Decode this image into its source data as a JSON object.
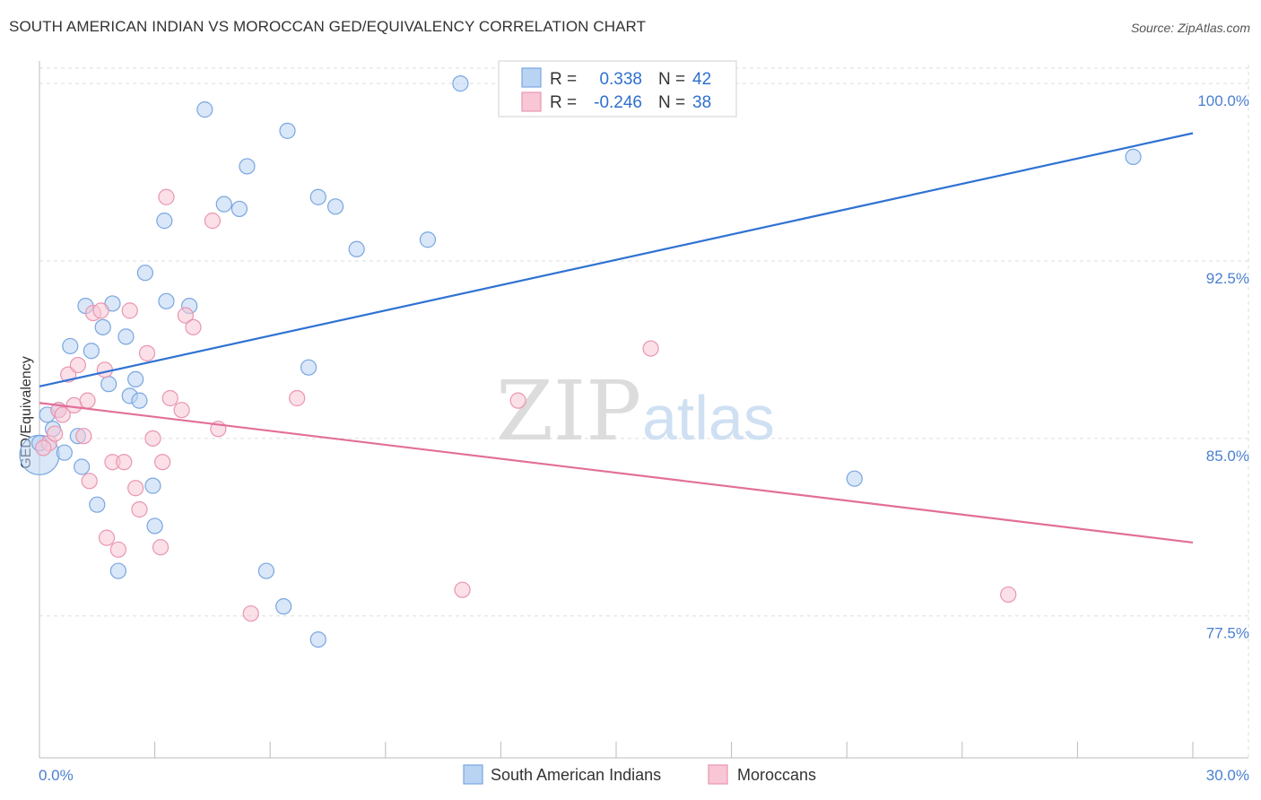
{
  "title": "SOUTH AMERICAN INDIAN VS MOROCCAN GED/EQUIVALENCY CORRELATION CHART",
  "source": "Source: ZipAtlas.com",
  "watermark": {
    "part1": "ZIP",
    "part2": "atlas"
  },
  "colors": {
    "blue_fill": "#b9d3f3",
    "blue_stroke": "#7aa6e0",
    "blue_line": "#2f72d3",
    "pink_fill": "#f8c6d5",
    "pink_stroke": "#e996b0",
    "pink_line": "#e26f98",
    "grid": "#dddddd",
    "axis_text": "#4a7fd0"
  },
  "legend": {
    "rows": [
      {
        "r_label": "R =",
        "r_value": "0.338",
        "n_label": "N =",
        "n_value": "42"
      },
      {
        "r_label": "R =",
        "r_value": "-0.246",
        "n_label": "N =",
        "n_value": "38"
      }
    ]
  },
  "chart_data": {
    "type": "scatter",
    "xlabel": "",
    "ylabel": "GED/Equivalency",
    "xlim": [
      0,
      30
    ],
    "ylim": [
      71.5,
      100.8
    ],
    "x_tick_labels": [
      {
        "value": 0,
        "label": "0.0%"
      },
      {
        "value": 30,
        "label": "30.0%"
      }
    ],
    "x_minor_ticks": [
      0,
      3,
      6,
      9,
      12,
      15,
      18,
      21,
      24,
      27,
      30
    ],
    "y_ticks": [
      {
        "value": 100.0,
        "label": "100.0%"
      },
      {
        "value": 92.5,
        "label": "92.5%"
      },
      {
        "value": 85.0,
        "label": "85.0%"
      },
      {
        "value": 77.5,
        "label": "77.5%"
      }
    ],
    "grid": true,
    "legend_position": "top-center",
    "series": [
      {
        "name": "South American Indians",
        "color": "blue",
        "trend": {
          "x0": 0,
          "y0": 87.2,
          "x1": 30,
          "y1": 97.9
        },
        "points": [
          {
            "x": 0.0,
            "y": 84.3,
            "big": true
          },
          {
            "x": 0.2,
            "y": 86.0
          },
          {
            "x": 0.35,
            "y": 85.4
          },
          {
            "x": 0.5,
            "y": 86.2
          },
          {
            "x": 0.65,
            "y": 84.4
          },
          {
            "x": 0.8,
            "y": 88.9
          },
          {
            "x": 1.0,
            "y": 85.1
          },
          {
            "x": 1.1,
            "y": 83.8
          },
          {
            "x": 1.2,
            "y": 90.6
          },
          {
            "x": 1.35,
            "y": 88.7
          },
          {
            "x": 1.5,
            "y": 82.2
          },
          {
            "x": 1.65,
            "y": 89.7
          },
          {
            "x": 1.8,
            "y": 87.3
          },
          {
            "x": 1.9,
            "y": 90.7
          },
          {
            "x": 2.05,
            "y": 79.4
          },
          {
            "x": 2.25,
            "y": 89.3
          },
          {
            "x": 2.35,
            "y": 86.8
          },
          {
            "x": 2.5,
            "y": 87.5
          },
          {
            "x": 2.6,
            "y": 86.6
          },
          {
            "x": 2.75,
            "y": 92.0
          },
          {
            "x": 2.95,
            "y": 83.0
          },
          {
            "x": 3.0,
            "y": 81.3
          },
          {
            "x": 3.25,
            "y": 94.2
          },
          {
            "x": 3.3,
            "y": 90.8
          },
          {
            "x": 3.9,
            "y": 90.6
          },
          {
            "x": 4.3,
            "y": 98.9
          },
          {
            "x": 4.8,
            "y": 94.9
          },
          {
            "x": 5.2,
            "y": 94.7
          },
          {
            "x": 5.4,
            "y": 96.5
          },
          {
            "x": 5.9,
            "y": 79.4
          },
          {
            "x": 6.35,
            "y": 77.9
          },
          {
            "x": 6.45,
            "y": 98.0
          },
          {
            "x": 7.0,
            "y": 88.0
          },
          {
            "x": 7.25,
            "y": 76.5
          },
          {
            "x": 7.25,
            "y": 95.2
          },
          {
            "x": 7.7,
            "y": 94.8
          },
          {
            "x": 8.25,
            "y": 93.0
          },
          {
            "x": 10.1,
            "y": 93.4
          },
          {
            "x": 10.95,
            "y": 100.0
          },
          {
            "x": 21.2,
            "y": 83.3
          },
          {
            "x": 28.45,
            "y": 96.9
          },
          {
            "x": 0.0,
            "y": 84.8
          }
        ]
      },
      {
        "name": "Moroccans",
        "color": "pink",
        "trend": {
          "x0": 0,
          "y0": 86.5,
          "x1": 30,
          "y1": 80.6
        },
        "points": [
          {
            "x": 0.25,
            "y": 84.8
          },
          {
            "x": 0.4,
            "y": 85.2
          },
          {
            "x": 0.5,
            "y": 86.2
          },
          {
            "x": 0.6,
            "y": 86.0
          },
          {
            "x": 0.75,
            "y": 87.7
          },
          {
            "x": 0.9,
            "y": 86.4
          },
          {
            "x": 1.0,
            "y": 88.1
          },
          {
            "x": 1.15,
            "y": 85.1
          },
          {
            "x": 1.3,
            "y": 83.2
          },
          {
            "x": 1.4,
            "y": 90.3
          },
          {
            "x": 1.6,
            "y": 90.4
          },
          {
            "x": 1.7,
            "y": 87.9
          },
          {
            "x": 1.75,
            "y": 80.8
          },
          {
            "x": 1.9,
            "y": 84.0
          },
          {
            "x": 2.05,
            "y": 80.3
          },
          {
            "x": 2.2,
            "y": 84.0
          },
          {
            "x": 2.35,
            "y": 90.4
          },
          {
            "x": 2.5,
            "y": 82.9
          },
          {
            "x": 2.6,
            "y": 82.0
          },
          {
            "x": 2.8,
            "y": 88.6
          },
          {
            "x": 2.95,
            "y": 85.0
          },
          {
            "x": 3.15,
            "y": 80.4
          },
          {
            "x": 3.2,
            "y": 84.0
          },
          {
            "x": 3.3,
            "y": 95.2
          },
          {
            "x": 3.4,
            "y": 86.7
          },
          {
            "x": 3.7,
            "y": 86.2
          },
          {
            "x": 3.8,
            "y": 90.2
          },
          {
            "x": 4.0,
            "y": 89.7
          },
          {
            "x": 4.5,
            "y": 94.2
          },
          {
            "x": 4.65,
            "y": 85.4
          },
          {
            "x": 5.5,
            "y": 77.6
          },
          {
            "x": 6.7,
            "y": 86.7
          },
          {
            "x": 11.0,
            "y": 78.6
          },
          {
            "x": 12.45,
            "y": 86.6
          },
          {
            "x": 15.9,
            "y": 88.8
          },
          {
            "x": 25.2,
            "y": 78.4
          },
          {
            "x": 0.1,
            "y": 84.6
          },
          {
            "x": 1.25,
            "y": 86.6
          }
        ]
      }
    ]
  }
}
